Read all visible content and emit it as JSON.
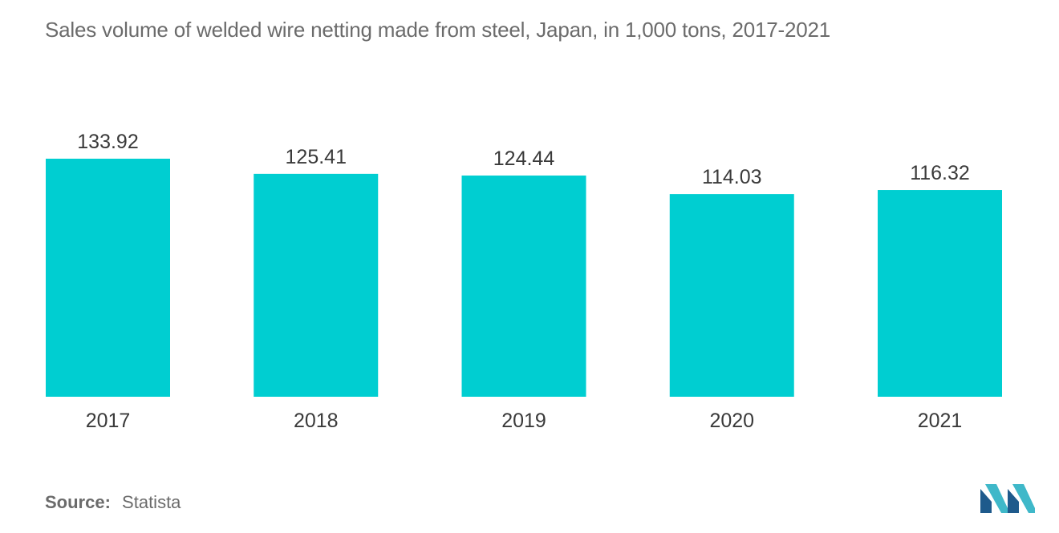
{
  "chart_data": {
    "type": "bar",
    "title": "Sales volume of welded wire netting made from steel, Japan, in 1,000 tons, 2017-2021",
    "categories": [
      "2017",
      "2018",
      "2019",
      "2020",
      "2021"
    ],
    "values": [
      133.92,
      125.41,
      124.44,
      114.03,
      116.32
    ],
    "value_labels": [
      "133.92",
      "125.41",
      "124.44",
      "114.03",
      "116.32"
    ],
    "xlabel": "",
    "ylabel": "",
    "ylim": [
      0,
      133.92
    ],
    "grid": false,
    "legend": "none",
    "bar_color": "#00ced1"
  },
  "footer": {
    "source_label": "Source:",
    "source_value": "Statista"
  },
  "colors": {
    "title_text": "#6b6b6b",
    "value_text": "#3a3a3a",
    "logo_dark": "#1e5a8c",
    "logo_light": "#3fb8c9"
  },
  "logo": {
    "icon": "mordor-intelligence-logo-icon"
  }
}
